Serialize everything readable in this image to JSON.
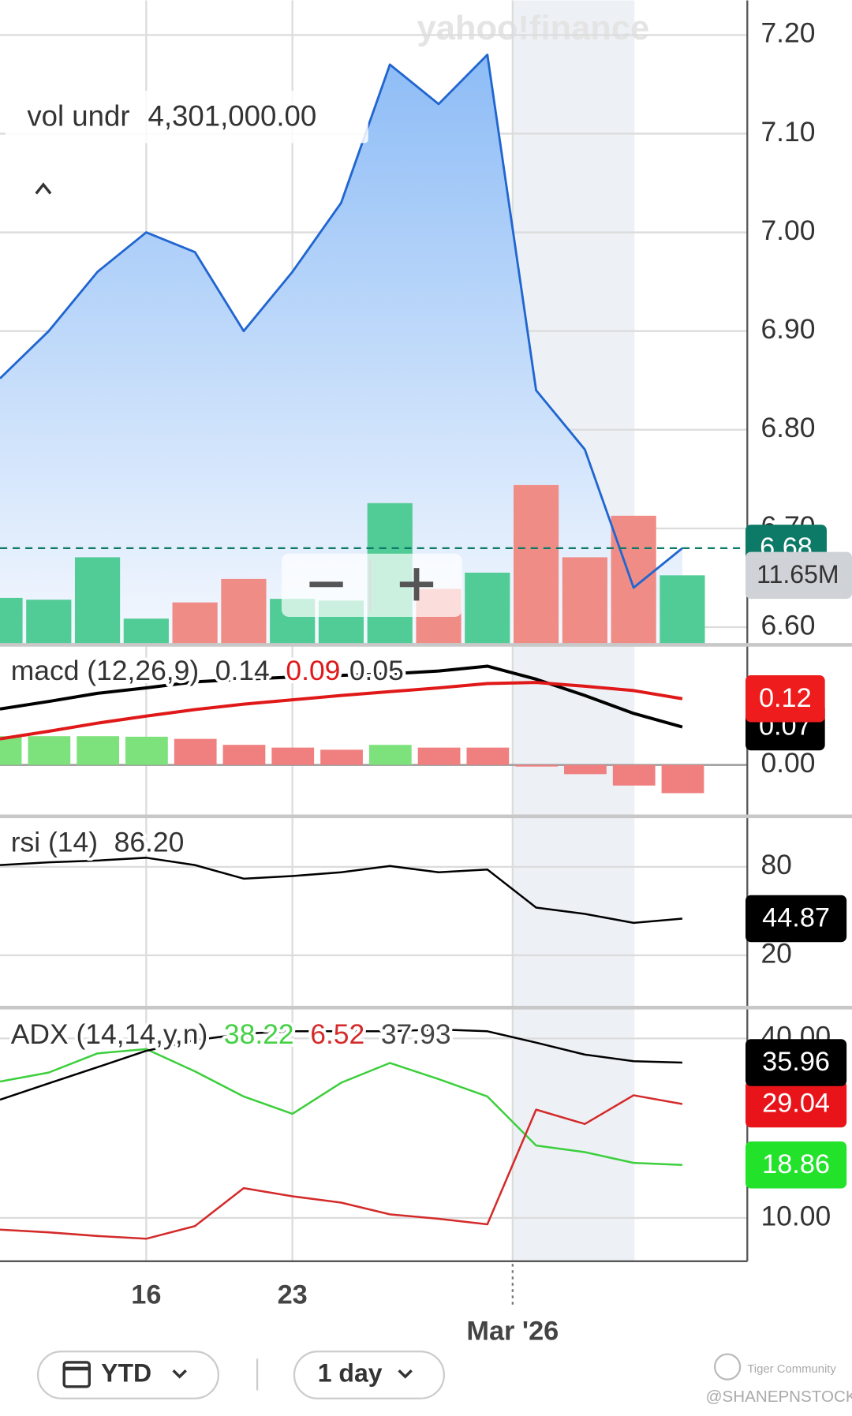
{
  "chart_data": [
    {
      "type": "area",
      "categories": [
        null,
        null,
        null,
        "16",
        null,
        null,
        "23",
        null,
        null,
        null,
        null,
        null,
        null,
        null,
        null
      ],
      "x_period_label": "Mar '26",
      "series": [
        {
          "color": "#2166d0",
          "values": [
            6.852,
            6.9,
            6.96,
            7.0,
            6.98,
            6.9,
            6.96,
            7.03,
            7.17,
            7.13,
            7.18,
            6.84,
            6.78,
            6.64,
            6.68
          ],
          "tag_label": "6.68",
          "tag_color": "#0c7a67"
        }
      ],
      "volume": {
        "name": "vol undr",
        "legend_label": "4,301,000.00",
        "values": [
          7820000,
          7510000,
          14720000,
          4301000,
          7050000,
          11040000,
          7660000,
          7360000,
          23910000,
          9350000,
          12110000,
          26980000,
          14720000,
          21770000,
          11650000
        ],
        "colors": [
          "#52cc96",
          "#52cc96",
          "#52cc96",
          "#52cc96",
          "#f08c86",
          "#f08c86",
          "#52cc96",
          "#52cc96",
          "#52cc96",
          "#f08c86",
          "#52cc96",
          "#f08c86",
          "#f08c86",
          "#f08c86",
          "#52cc96"
        ],
        "ylim": [
          0,
          109300000
        ],
        "tag_label": "11.65M",
        "tag_color": "#cfd2d6"
      },
      "ylim": [
        6.583,
        7.235
      ],
      "yticks": [
        {
          "value": 6.6,
          "label": "6.60"
        },
        {
          "value": 6.7,
          "label": "6.70"
        },
        {
          "value": 6.8,
          "label": "6.80"
        },
        {
          "value": 6.9,
          "label": "6.90"
        },
        {
          "value": 7.0,
          "label": "7.00"
        },
        {
          "value": 7.1,
          "label": "7.10"
        },
        {
          "value": 7.2,
          "label": "7.20"
        }
      ],
      "grid": true
    },
    {
      "type": "macd",
      "label": "macd (12,26,9)",
      "series": [
        {
          "color": "#000000",
          "values": [
            0.103,
            0.117,
            0.132,
            0.142,
            0.153,
            0.158,
            0.162,
            0.165,
            0.168,
            0.173,
            0.182,
            0.158,
            0.128,
            0.095,
            0.07
          ],
          "legend_label": "0.14",
          "legend_color": "#333333",
          "tag_label": "0.07",
          "tag_color": "#000000"
        },
        {
          "color": "#e01818",
          "values": [
            0.048,
            0.062,
            0.077,
            0.09,
            0.102,
            0.112,
            0.12,
            0.128,
            0.135,
            0.142,
            0.15,
            0.152,
            0.145,
            0.137,
            0.122
          ],
          "legend_label": "0.09",
          "legend_color": "#e01818",
          "tag_label": "0.12",
          "tag_color": "#ee1c1c"
        }
      ],
      "histogram": {
        "values": [
          0.053,
          0.053,
          0.053,
          0.052,
          0.048,
          0.037,
          0.032,
          0.028,
          0.037,
          0.032,
          0.032,
          -0.003,
          -0.017,
          -0.038,
          -0.052
        ],
        "colors": [
          "#7ee27c",
          "#7ee27c",
          "#7ee27c",
          "#7ee27c",
          "#f08080",
          "#f08080",
          "#f08080",
          "#f08080",
          "#7ee27c",
          "#f08080",
          "#f08080",
          "#f08080",
          "#f08080",
          "#f08080",
          "#f08080"
        ],
        "legend_label": "0.05",
        "legend_color": "#333333"
      },
      "ylim": [
        -0.093,
        0.223
      ],
      "yticks": [
        {
          "value": 0,
          "label": "0.00"
        }
      ],
      "grid": true
    },
    {
      "type": "line",
      "label": "rsi (14)",
      "series": [
        {
          "color": "#000000",
          "values": [
            81.2,
            83.1,
            84.3,
            86.2,
            81.2,
            72.0,
            73.8,
            76.3,
            80.6,
            76.3,
            78.2,
            52.4,
            48.1,
            42.0,
            44.87
          ],
          "legend_label": "86.20",
          "legend_color": "#333333",
          "tag_label": "44.87",
          "tag_color": "#000000"
        }
      ],
      "ylim": [
        -14.9,
        113.7
      ],
      "yticks": [
        80,
        20
      ],
      "grid": true
    },
    {
      "type": "line",
      "label": "ADX (14,14,y,n)",
      "series": [
        {
          "color": "#3ccf3c",
          "values": [
            32.8,
            34.3,
            37.5,
            38.22,
            34.5,
            30.3,
            27.4,
            32.6,
            35.9,
            33.2,
            30.3,
            22.1,
            21.0,
            19.2,
            18.86
          ],
          "legend_label": "38.22",
          "legend_color": "#45d145",
          "tag_label": "18.86",
          "tag_color": "#22e22a"
        },
        {
          "color": "#d42a2a",
          "values": [
            8.04,
            7.59,
            6.98,
            6.52,
            8.64,
            14.98,
            13.62,
            12.56,
            10.6,
            9.85,
            8.94,
            28.1,
            25.7,
            30.5,
            29.04
          ],
          "legend_label": "6.52",
          "legend_color": "#d42a2a",
          "tag_label": "29.04",
          "tag_color": "#e8141a"
        },
        {
          "color": "#000000",
          "values": [
            29.76,
            32.5,
            35.2,
            37.93,
            39.7,
            40.8,
            41.2,
            41.2,
            41.2,
            41.5,
            41.2,
            39.3,
            37.3,
            36.2,
            35.96
          ],
          "legend_label": "37.93",
          "legend_color": "#444444",
          "tag_label": "35.96",
          "tag_color": "#000000"
        }
      ],
      "ylim": [
        2.76,
        45.0
      ],
      "yticks": [
        {
          "value": 10,
          "label": "10.00"
        },
        {
          "value": 40,
          "label": "40.00"
        }
      ],
      "grid": true
    }
  ],
  "watermark": "yahoo!finance",
  "controls": {
    "range": "YTD",
    "interval": "1 day"
  },
  "credits": {
    "community": "Tiger Community",
    "handle": "@SHANEPNSTOCK"
  }
}
